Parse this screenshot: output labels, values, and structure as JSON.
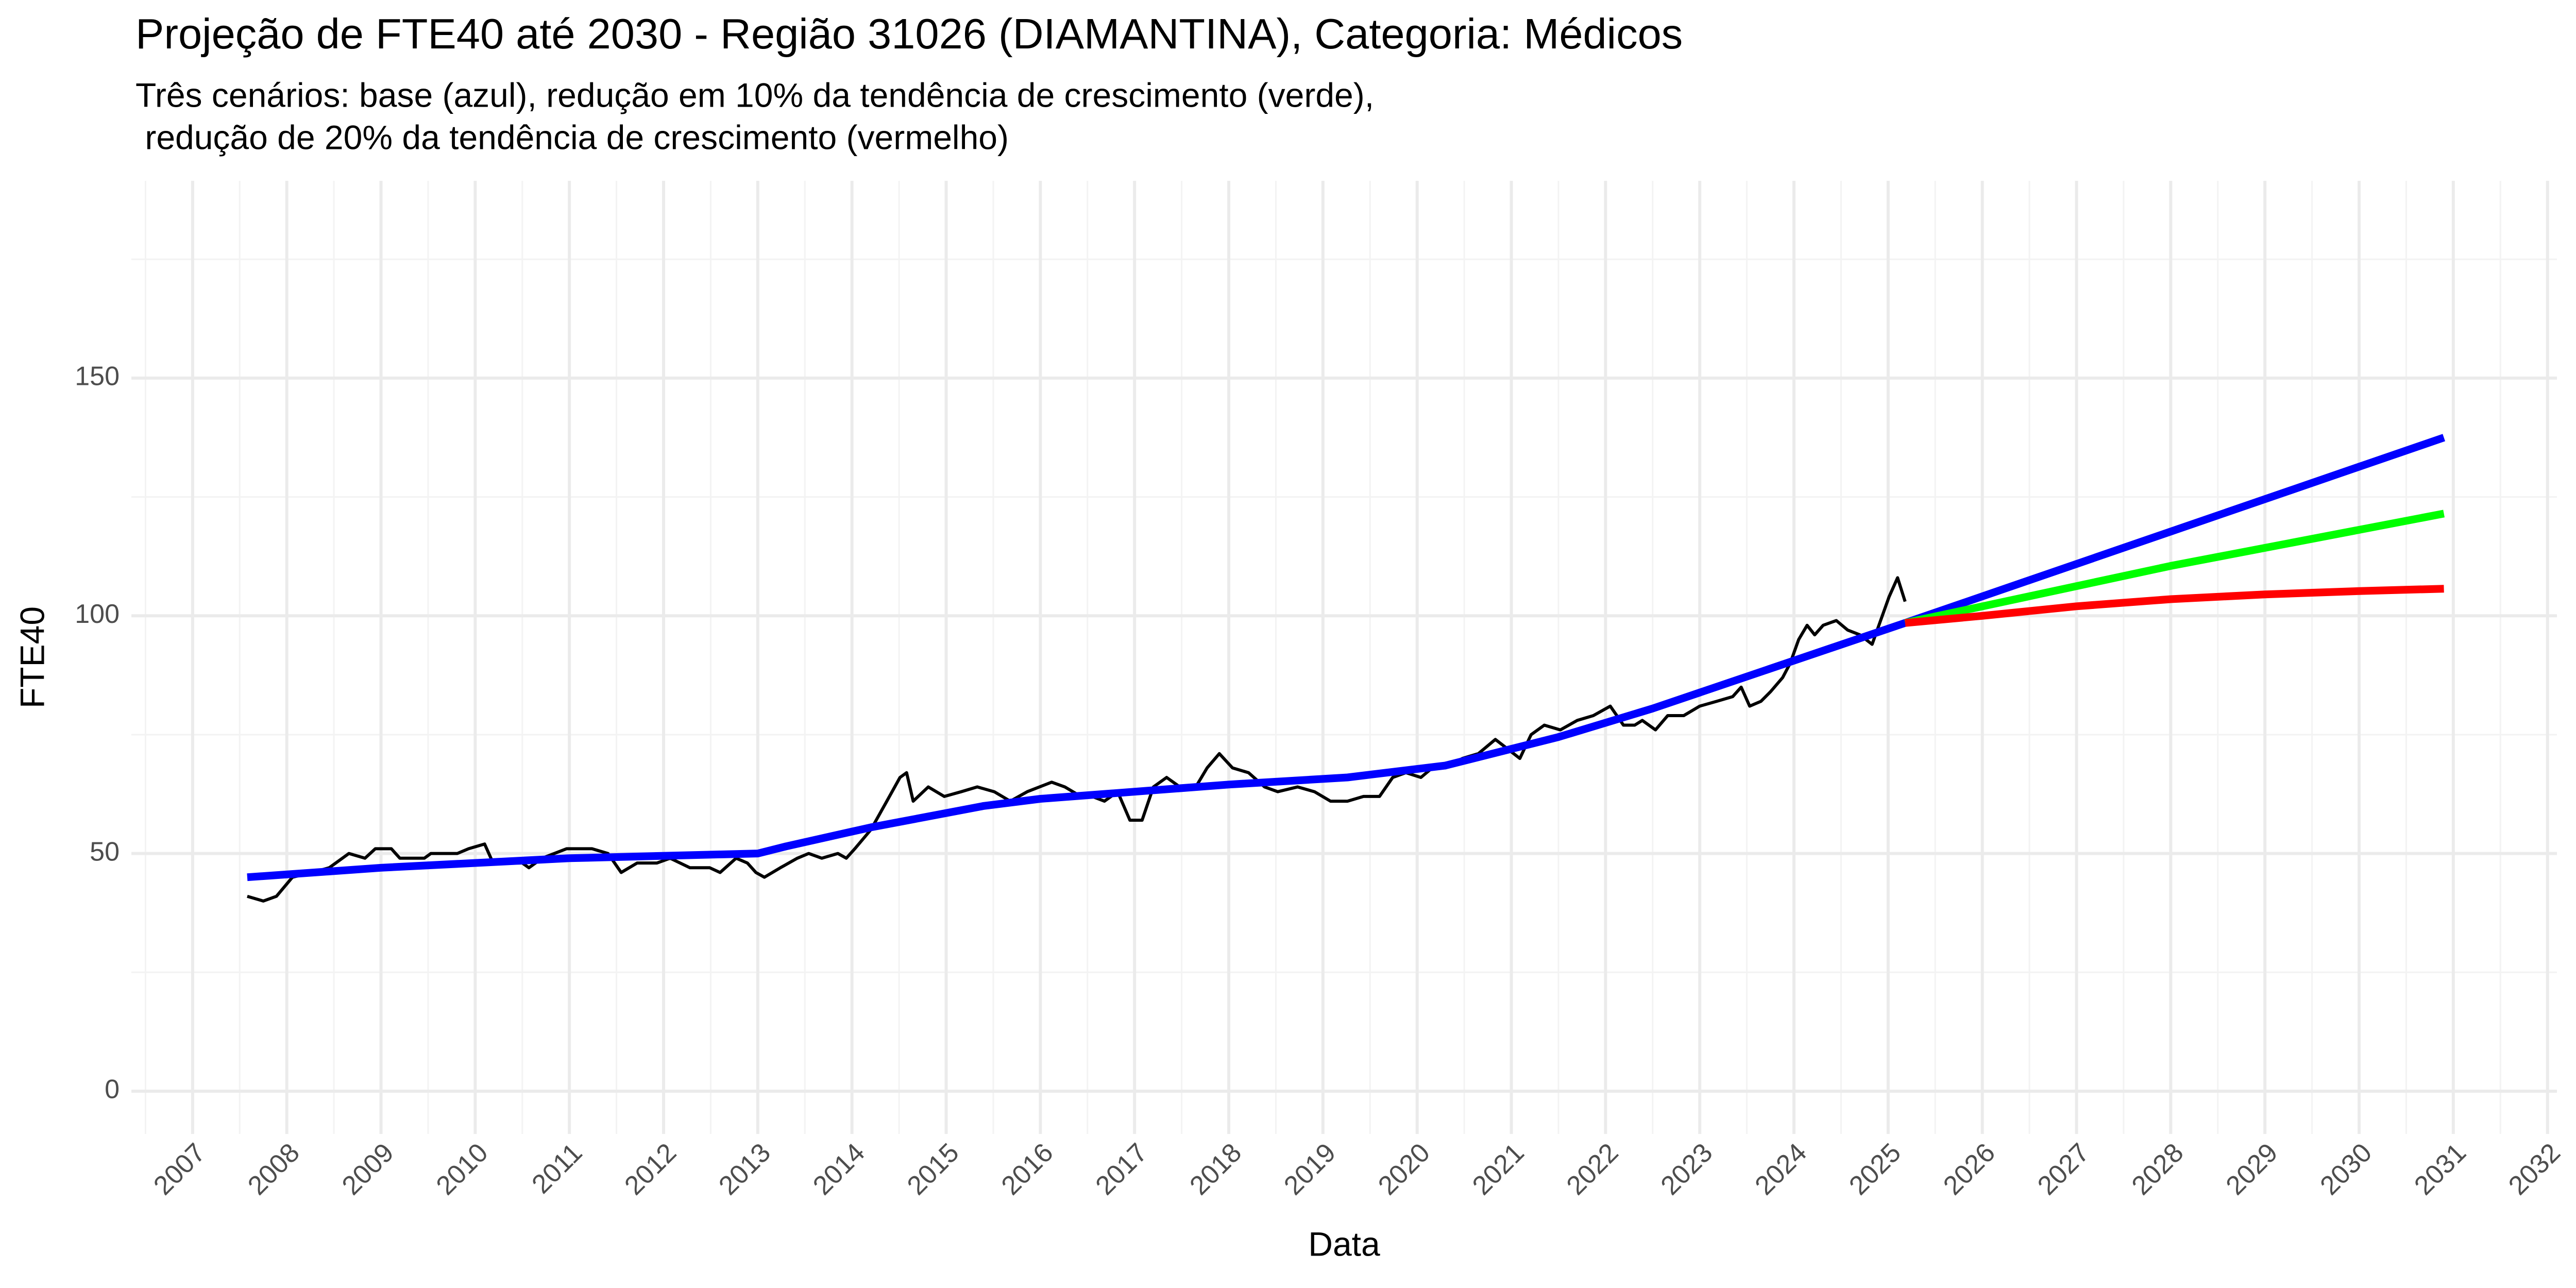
{
  "chart_data": {
    "type": "line",
    "title": "Projeção de FTE40 até 2030 - Região 31026 (DIAMANTINA), Categoria: Médicos",
    "subtitle": [
      "Três cenários: base (azul), redução em 10% da tendência de crescimento (verde),",
      " redução de 20% da tendência de crescimento (vermelho)"
    ],
    "x_label": "Data",
    "y_label": "FTE40",
    "xlim": [
      2006.35,
      2032.1
    ],
    "ylim": [
      -9,
      191.5
    ],
    "xticks": [
      2007,
      2008,
      2009,
      2010,
      2011,
      2012,
      2013,
      2014,
      2015,
      2016,
      2017,
      2018,
      2019,
      2020,
      2021,
      2022,
      2023,
      2024,
      2025,
      2026,
      2027,
      2028,
      2029,
      2030,
      2031,
      2032
    ],
    "yticks": [
      0,
      50,
      100,
      150
    ],
    "grid": true,
    "series": [
      {
        "color": "#000000",
        "x": [
          2007.58,
          2007.75,
          2007.89,
          2008.06,
          2008.27,
          2008.45,
          2008.66,
          2008.83,
          2008.94,
          2009.11,
          2009.2,
          2009.46,
          2009.53,
          2009.81,
          2009.93,
          2010.1,
          2010.19,
          2010.5,
          2010.57,
          2010.71,
          2010.97,
          2011.24,
          2011.41,
          2011.55,
          2011.72,
          2011.93,
          2012.07,
          2012.28,
          2012.49,
          2012.6,
          2012.77,
          2012.89,
          2012.98,
          2013.07,
          2013.24,
          2013.42,
          2013.54,
          2013.68,
          2013.85,
          2013.94,
          2014.03,
          2014.2,
          2014.37,
          2014.51,
          2014.58,
          2014.65,
          2014.81,
          2014.98,
          2015.16,
          2015.33,
          2015.51,
          2015.68,
          2015.86,
          2016.12,
          2016.26,
          2016.43,
          2016.55,
          2016.68,
          2016.82,
          2016.95,
          2017.08,
          2017.2,
          2017.34,
          2017.48,
          2017.65,
          2017.77,
          2017.9,
          2018.04,
          2018.21,
          2018.38,
          2018.52,
          2018.73,
          2018.91,
          2019.08,
          2019.26,
          2019.43,
          2019.6,
          2019.74,
          2019.88,
          2020.04,
          2020.16,
          2020.3,
          2020.48,
          2020.65,
          2020.83,
          2020.96,
          2021.09,
          2021.21,
          2021.35,
          2021.52,
          2021.7,
          2021.87,
          2022.05,
          2022.19,
          2022.31,
          2022.39,
          2022.53,
          2022.66,
          2022.83,
          2023.0,
          2023.18,
          2023.35,
          2023.44,
          2023.53,
          2023.65,
          2023.75,
          2023.88,
          2023.96,
          2024.05,
          2024.14,
          2024.22,
          2024.31,
          2024.45,
          2024.57,
          2024.7,
          2024.83,
          2024.92,
          2025.01,
          2025.1,
          2025.18
        ],
        "values": [
          41,
          40,
          41,
          45,
          46,
          47,
          50,
          49,
          51,
          51,
          49,
          49,
          50,
          50,
          51,
          52,
          48,
          48,
          47,
          49,
          51,
          51,
          50,
          46,
          48,
          48,
          49,
          47,
          47,
          46,
          49,
          48,
          46,
          45,
          47,
          49,
          50,
          49,
          50,
          49,
          51,
          55,
          61,
          66,
          67,
          61,
          64,
          62,
          63,
          64,
          63,
          61,
          63,
          65,
          64,
          62,
          62,
          61,
          63,
          57,
          57,
          64,
          66,
          64,
          64,
          68,
          71,
          68,
          67,
          64,
          63,
          64,
          63,
          61,
          61,
          62,
          62,
          66,
          67,
          66,
          68,
          68,
          70,
          71,
          74,
          72,
          70,
          75,
          77,
          76,
          78,
          79,
          81,
          77,
          77,
          78,
          76,
          79,
          79,
          81,
          82,
          83,
          85,
          81,
          82,
          84,
          87,
          90,
          95,
          98,
          96,
          98,
          99,
          97,
          96,
          94,
          99,
          104,
          108,
          103
        ]
      },
      {
        "color": "#0000ff",
        "x": [
          2007.58,
          2009,
          2011,
          2013,
          2013.3,
          2014.2,
          2015.4,
          2016,
          2017,
          2018,
          2019.26,
          2020.3,
          2021.5,
          2022.5,
          2025.18,
          2030.9
        ],
        "values": [
          45,
          47,
          49,
          50,
          51.5,
          55.5,
          60,
          61.5,
          63,
          64.5,
          66,
          68.5,
          74.5,
          80.5,
          98.5,
          137.5
        ]
      },
      {
        "color": "#00ff00",
        "x": [
          2025.18,
          2028,
          2030.9
        ],
        "values": [
          98.5,
          110.5,
          121.5
        ]
      },
      {
        "color": "#ff0000",
        "x": [
          2025.18,
          2026,
          2027,
          2028,
          2029,
          2030,
          2030.9
        ],
        "values": [
          98.5,
          100,
          102,
          103.5,
          104.5,
          105.2,
          105.7
        ]
      }
    ]
  }
}
